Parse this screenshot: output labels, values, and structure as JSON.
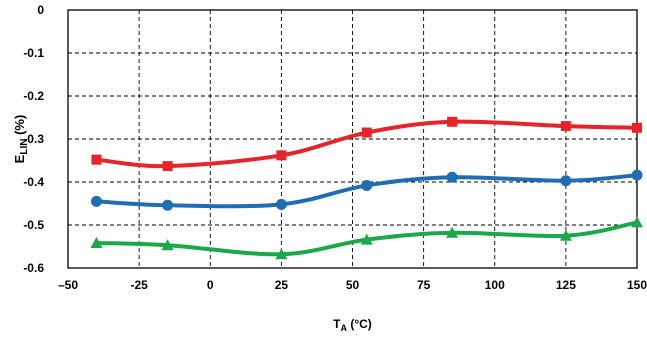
{
  "chart_data": {
    "type": "line",
    "xlabel_main": "T",
    "xlabel_sub": "A",
    "xlabel_tail": " (°C)",
    "ylabel_main": "E",
    "ylabel_sub": "LIN",
    "ylabel_tail": " (%)",
    "xlim": [
      -50,
      150
    ],
    "ylim": [
      -0.6,
      0
    ],
    "x_ticks": [
      -50,
      -25,
      0,
      25,
      50,
      75,
      100,
      125,
      150
    ],
    "x_tick_labels": [
      "–50",
      "-25",
      "0",
      "25",
      "50",
      "75",
      "100",
      "125",
      "150"
    ],
    "y_ticks": [
      0,
      -0.1,
      -0.2,
      -0.3,
      -0.4,
      -0.5,
      -0.6
    ],
    "y_tick_labels": [
      "0",
      "-0.1",
      "-0.2",
      "-0.3",
      "-0.4",
      "-0.5",
      "-0.6"
    ],
    "grid": true,
    "grid_style": "dashed",
    "series": [
      {
        "marker": "square",
        "color": "#e8232a",
        "x": [
          -40,
          -15,
          25,
          55,
          85,
          125,
          150
        ],
        "y": [
          -0.348,
          -0.363,
          -0.338,
          -0.285,
          -0.26,
          -0.27,
          -0.274
        ]
      },
      {
        "marker": "circle",
        "color": "#1f6db3",
        "x": [
          -40,
          -15,
          25,
          55,
          85,
          125,
          150
        ],
        "y": [
          -0.445,
          -0.454,
          -0.452,
          -0.408,
          -0.389,
          -0.397,
          -0.384
        ]
      },
      {
        "marker": "triangle",
        "color": "#1aa84a",
        "x": [
          -40,
          -15,
          25,
          55,
          85,
          125,
          150
        ],
        "y": [
          -0.542,
          -0.547,
          -0.568,
          -0.534,
          -0.518,
          -0.525,
          -0.494
        ]
      }
    ]
  }
}
